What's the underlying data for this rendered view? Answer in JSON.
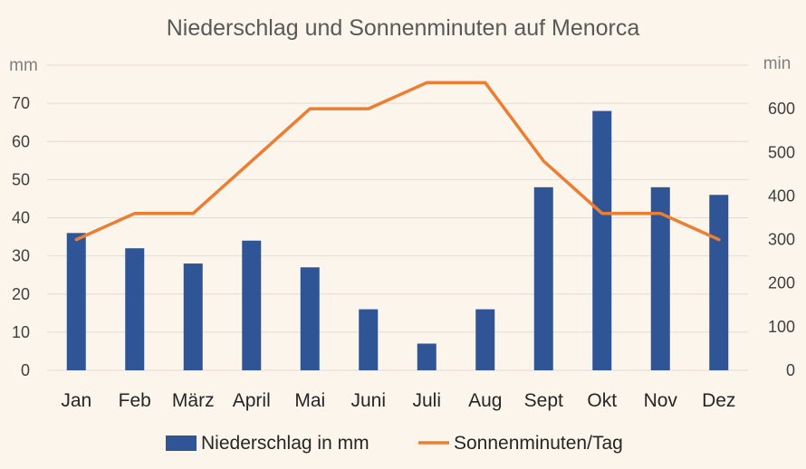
{
  "chart_data": {
    "type": "bar",
    "title": "Niederschlag und Sonnenminuten auf Menorca",
    "categories": [
      "Jan",
      "Feb",
      "März",
      "April",
      "Mai",
      "Juni",
      "Juli",
      "Aug",
      "Sept",
      "Okt",
      "Nov",
      "Dez"
    ],
    "y_left_unit": "mm",
    "y_right_unit": "min",
    "y_left_ticks": [
      "0",
      "10",
      "20",
      "30",
      "40",
      "50",
      "60",
      "70"
    ],
    "y_right_ticks": [
      "0",
      "100",
      "200",
      "300",
      "400",
      "500",
      "600"
    ],
    "ylim_left": [
      0,
      80
    ],
    "ylim_right": [
      0,
      700
    ],
    "grid": true,
    "legend_position": "bottom",
    "series": [
      {
        "name": "Niederschlag in mm",
        "type": "bar",
        "axis": "left",
        "color": "#2f5597",
        "values": [
          36,
          32,
          28,
          34,
          27,
          16,
          7,
          16,
          48,
          68,
          48,
          46
        ]
      },
      {
        "name": "Sonnenminuten/Tag",
        "type": "line",
        "axis": "right",
        "color": "#ed7d31",
        "values": [
          300,
          360,
          360,
          480,
          600,
          600,
          660,
          660,
          480,
          360,
          360,
          300
        ]
      }
    ]
  }
}
